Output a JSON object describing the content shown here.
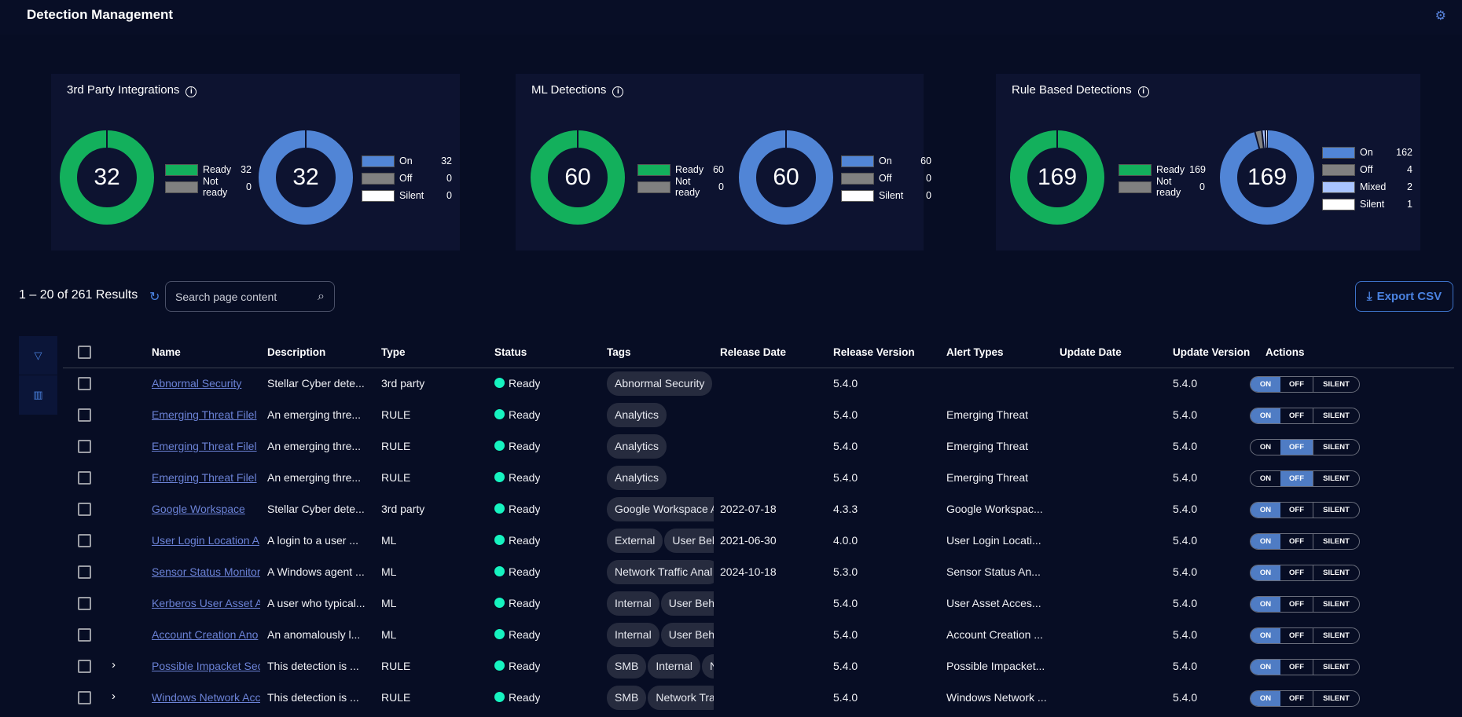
{
  "header": {
    "title": "Detection Management",
    "settings_icon": "gear-icon"
  },
  "colors": {
    "ready": "#13b05c",
    "not_ready": "#808080",
    "on": "#5185d6",
    "off": "#808080",
    "mixed": "#a9c4ff",
    "silent": "#ffffff",
    "accent": "#4a82e0"
  },
  "cards": [
    {
      "title": "3rd Party Integrations",
      "readiness": {
        "total": "32",
        "items": [
          {
            "label": "Ready",
            "value": 32
          },
          {
            "label": "Not ready",
            "value": 0
          }
        ]
      },
      "state": {
        "total": "32",
        "items": [
          {
            "label": "On",
            "value": 32
          },
          {
            "label": "Off",
            "value": 0
          },
          {
            "label": "Silent",
            "value": 0
          }
        ]
      }
    },
    {
      "title": "ML Detections",
      "readiness": {
        "total": "60",
        "items": [
          {
            "label": "Ready",
            "value": 60
          },
          {
            "label": "Not ready",
            "value": 0
          }
        ]
      },
      "state": {
        "total": "60",
        "items": [
          {
            "label": "On",
            "value": 60
          },
          {
            "label": "Off",
            "value": 0
          },
          {
            "label": "Silent",
            "value": 0
          }
        ]
      }
    },
    {
      "title": "Rule Based Detections",
      "readiness": {
        "total": "169",
        "items": [
          {
            "label": "Ready",
            "value": 169
          },
          {
            "label": "Not ready",
            "value": 0
          }
        ]
      },
      "state": {
        "total": "169",
        "items": [
          {
            "label": "On",
            "value": 162
          },
          {
            "label": "Off",
            "value": 4
          },
          {
            "label": "Mixed",
            "value": 2
          },
          {
            "label": "Silent",
            "value": 1
          }
        ]
      }
    }
  ],
  "toolbar": {
    "results": "1 – 20 of 261 Results",
    "search_placeholder": "Search page content",
    "export_label": "Export CSV"
  },
  "table": {
    "columns": [
      "Name",
      "Description",
      "Type",
      "Status",
      "Tags",
      "Release Date",
      "Release Version",
      "Alert Types",
      "Update Date",
      "Update Version",
      "Actions"
    ],
    "toggle_labels": [
      "ON",
      "OFF",
      "SILENT"
    ],
    "rows": [
      {
        "name": "Abnormal Security",
        "description": "Stellar Cyber dete...",
        "type": "3rd party",
        "status": "Ready",
        "tags": [
          "Abnormal Security"
        ],
        "release_date": "",
        "release_version": "5.4.0",
        "alert_types": "",
        "update_date": "",
        "update_version": "5.4.0",
        "state": "ON",
        "expandable": false
      },
      {
        "name": "Emerging Threat Filel",
        "description": "An emerging thre...",
        "type": "RULE",
        "status": "Ready",
        "tags": [
          "Analytics"
        ],
        "release_date": "",
        "release_version": "5.4.0",
        "alert_types": "Emerging Threat",
        "update_date": "",
        "update_version": "5.4.0",
        "state": "ON",
        "expandable": false
      },
      {
        "name": "Emerging Threat Filel",
        "description": "An emerging thre...",
        "type": "RULE",
        "status": "Ready",
        "tags": [
          "Analytics"
        ],
        "release_date": "",
        "release_version": "5.4.0",
        "alert_types": "Emerging Threat",
        "update_date": "",
        "update_version": "5.4.0",
        "state": "OFF",
        "expandable": false
      },
      {
        "name": "Emerging Threat Filel",
        "description": "An emerging thre...",
        "type": "RULE",
        "status": "Ready",
        "tags": [
          "Analytics"
        ],
        "release_date": "",
        "release_version": "5.4.0",
        "alert_types": "Emerging Threat",
        "update_date": "",
        "update_version": "5.4.0",
        "state": "OFF",
        "expandable": false
      },
      {
        "name": "Google Workspace",
        "description": "Stellar Cyber dete...",
        "type": "3rd party",
        "status": "Ready",
        "tags": [
          "Google Workspace A"
        ],
        "release_date": "2022-07-18",
        "release_version": "4.3.3",
        "alert_types": "Google Workspac...",
        "update_date": "",
        "update_version": "5.4.0",
        "state": "ON",
        "expandable": false
      },
      {
        "name": "User Login Location A",
        "description": "A login to a user ...",
        "type": "ML",
        "status": "Ready",
        "tags": [
          "External",
          "User Beh"
        ],
        "release_date": "2021-06-30",
        "release_version": "4.0.0",
        "alert_types": "User Login Locati...",
        "update_date": "",
        "update_version": "5.4.0",
        "state": "ON",
        "expandable": false
      },
      {
        "name": "Sensor Status Monitor",
        "description": "A Windows agent ...",
        "type": "ML",
        "status": "Ready",
        "tags": [
          "Network Traffic Anal"
        ],
        "release_date": "2024-10-18",
        "release_version": "5.3.0",
        "alert_types": "Sensor Status An...",
        "update_date": "",
        "update_version": "5.4.0",
        "state": "ON",
        "expandable": false
      },
      {
        "name": "Kerberos User Asset A",
        "description": "A user who typical...",
        "type": "ML",
        "status": "Ready",
        "tags": [
          "Internal",
          "User Beha"
        ],
        "release_date": "",
        "release_version": "5.4.0",
        "alert_types": "User Asset Acces...",
        "update_date": "",
        "update_version": "5.4.0",
        "state": "ON",
        "expandable": false
      },
      {
        "name": "Account Creation Ano",
        "description": "An anomalously l...",
        "type": "ML",
        "status": "Ready",
        "tags": [
          "Internal",
          "User Beha"
        ],
        "release_date": "",
        "release_version": "5.4.0",
        "alert_types": "Account Creation ...",
        "update_date": "",
        "update_version": "5.4.0",
        "state": "ON",
        "expandable": false
      },
      {
        "name": "Possible Impacket Sec",
        "description": "This detection is ...",
        "type": "RULE",
        "status": "Ready",
        "tags": [
          "SMB",
          "Internal",
          "N"
        ],
        "release_date": "",
        "release_version": "5.4.0",
        "alert_types": "Possible Impacket...",
        "update_date": "",
        "update_version": "5.4.0",
        "state": "ON",
        "expandable": true
      },
      {
        "name": "Windows Network Acc",
        "description": "This detection is ...",
        "type": "RULE",
        "status": "Ready",
        "tags": [
          "SMB",
          "Network Tra"
        ],
        "release_date": "",
        "release_version": "5.4.0",
        "alert_types": "Windows Network ...",
        "update_date": "",
        "update_version": "5.4.0",
        "state": "ON",
        "expandable": true
      }
    ]
  }
}
